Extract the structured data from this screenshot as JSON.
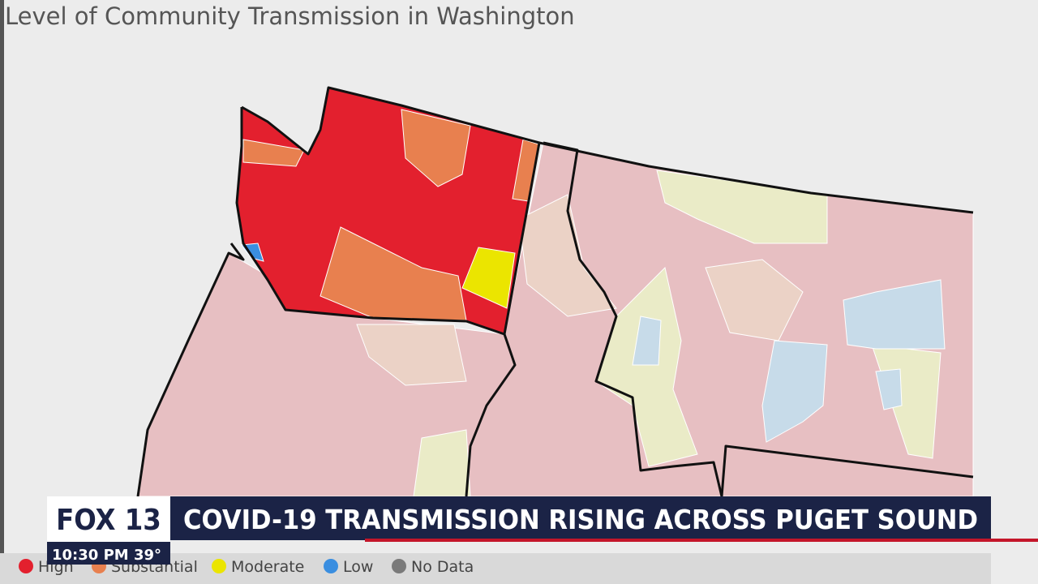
{
  "title": "Level of Community Transmission in Washington",
  "legend": [
    {
      "label": "High",
      "color": "#e3202e"
    },
    {
      "label": "Substantial",
      "color": "#e8804f"
    },
    {
      "label": "Moderate",
      "color": "#ebe500"
    },
    {
      "label": "Low",
      "color": "#3a8ee0"
    },
    {
      "label": "No Data",
      "color": "#7a7a7a"
    }
  ],
  "lower_third": {
    "logo": "FOX 13",
    "headline": "COVID-19 TRANSMISSION RISING ACROSS PUGET SOUND",
    "time": "10:30 PM",
    "temperature": "39°"
  }
}
